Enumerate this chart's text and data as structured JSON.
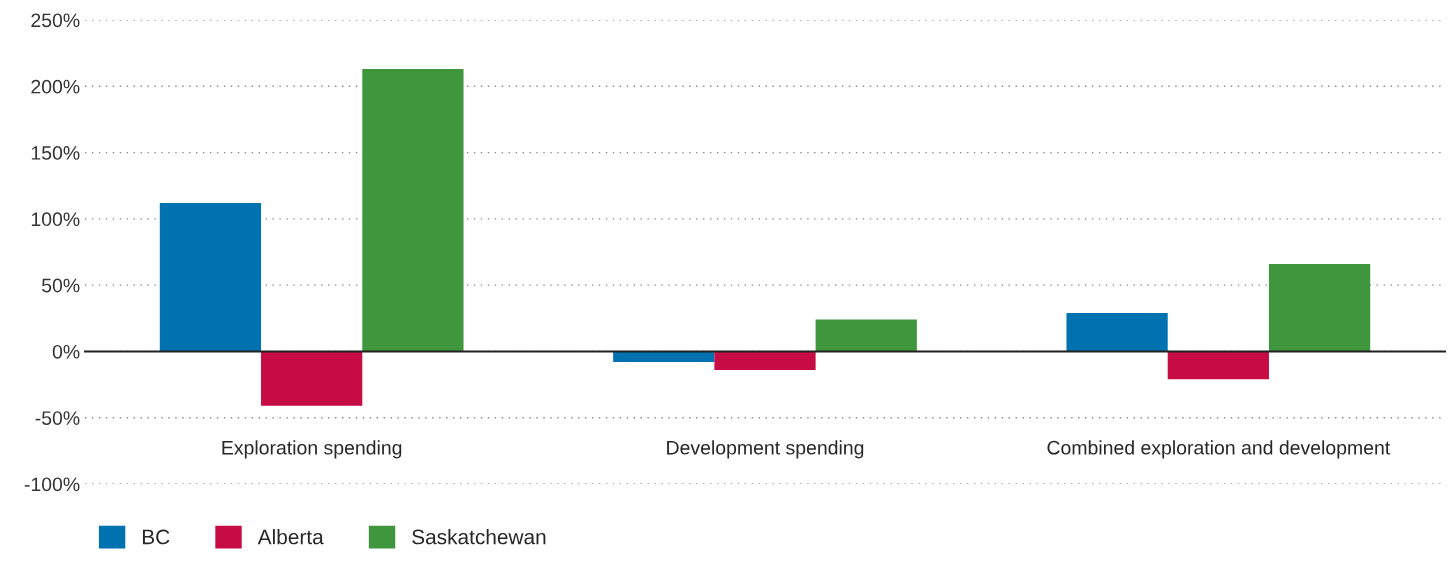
{
  "chart_data": {
    "type": "bar",
    "categories": [
      "Exploration spending",
      "Development spending",
      "Combined exploration and development"
    ],
    "series": [
      {
        "name": "BC",
        "color": "#0072b0",
        "values": [
          112,
          -8,
          29
        ]
      },
      {
        "name": "Alberta",
        "color": "#c70c45",
        "values": [
          -41,
          -14,
          -21
        ]
      },
      {
        "name": "Saskatchewan",
        "color": "#40963c",
        "values": [
          213,
          24,
          66
        ]
      }
    ],
    "ylim": [
      -100,
      250
    ],
    "yticks": [
      {
        "value": -100,
        "label": "-100%"
      },
      {
        "value": -50,
        "label": "-50%"
      },
      {
        "value": 0,
        "label": "0%"
      },
      {
        "value": 50,
        "label": "50%"
      },
      {
        "value": 100,
        "label": "100%"
      },
      {
        "value": 150,
        "label": "150%"
      },
      {
        "value": 200,
        "label": "200%"
      },
      {
        "value": 250,
        "label": "250%"
      }
    ],
    "grid": "y",
    "legend": "bottom left"
  }
}
